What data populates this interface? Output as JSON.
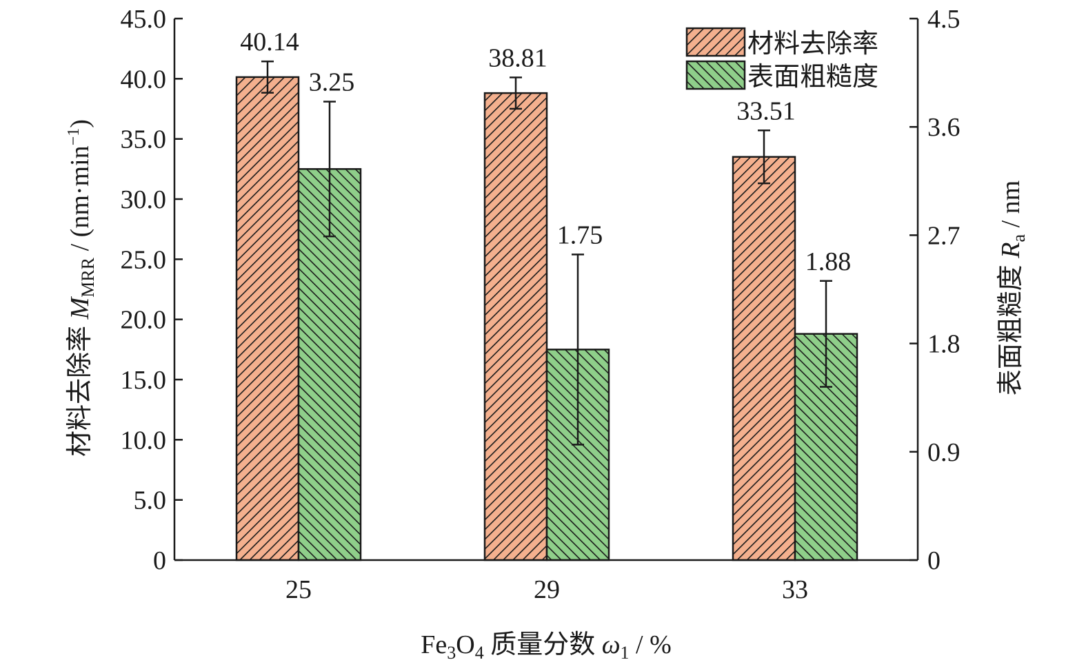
{
  "colors": {
    "mrr_fill": "#f4b08e",
    "ra_fill": "#8fcf8a",
    "hatch": "#1a1a1a",
    "axis": "#1a1a1a"
  },
  "chart_data": {
    "type": "bar",
    "categories": [
      "25",
      "29",
      "33"
    ],
    "series": [
      {
        "name": "材料去除率",
        "axis": "left",
        "values": [
          40.14,
          38.81,
          33.51
        ],
        "error": [
          1.3,
          1.3,
          2.2
        ],
        "labels": [
          "40.14",
          "38.81",
          "33.51"
        ]
      },
      {
        "name": "表面粗糙度",
        "axis": "right",
        "values": [
          3.25,
          1.75,
          1.88
        ],
        "error": [
          0.56,
          0.79,
          0.44
        ],
        "labels": [
          "3.25",
          "1.75",
          "1.88"
        ]
      }
    ],
    "ylim_left": [
      0,
      45
    ],
    "left_ticks": [
      "0",
      "5.0",
      "10.0",
      "15.0",
      "20.0",
      "25.0",
      "30.0",
      "35.0",
      "40.0",
      "45.0"
    ],
    "ylim_right": [
      0,
      4.5
    ],
    "right_ticks": [
      "0",
      "0.9",
      "1.8",
      "2.7",
      "3.6",
      "4.5"
    ],
    "xlabel": {
      "prefix": "Fe",
      "sub1": "3",
      "mid": "O",
      "sub2": "4",
      "text": " 质量分数 ",
      "symbol": "ω",
      "symbol_sub": "1",
      "unit": " / %"
    },
    "ylabel_left": {
      "text": "材料去除率 ",
      "symbol": "M",
      "symbol_sub": "MRR",
      "unit_pre": " / (nm·min",
      "unit_sup": "−1",
      "unit_post": ")"
    },
    "ylabel_right": {
      "text": "表面粗糙度 ",
      "symbol": "R",
      "symbol_sub": "a",
      "unit": " / nm"
    },
    "legend_position": "top-right",
    "grid": false
  }
}
